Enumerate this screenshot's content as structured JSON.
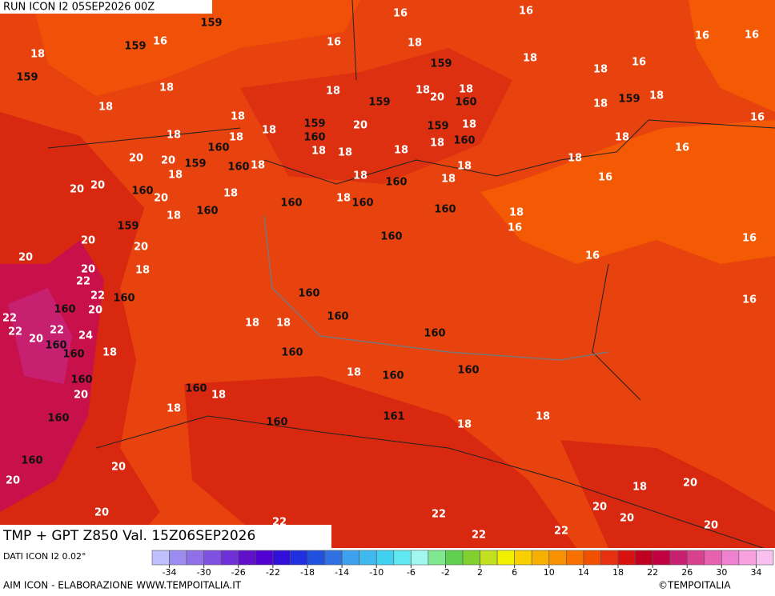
{
  "header": {
    "run": "RUN ICON I2 05SEP2026 00Z"
  },
  "footer": {
    "title": "TMP + GPT Z850 Val. 15Z06SEP2026",
    "source": "DATI ICON I2 0.02°",
    "credit": "AIM ICON - ELABORAZIONE WWW.TEMPOITALIA.IT",
    "copyright": "©TEMPOITALIA"
  },
  "colorbar": {
    "lim": [
      -36,
      36
    ],
    "ticks": [
      -34,
      -30,
      -26,
      -22,
      -18,
      -14,
      -10,
      -6,
      -2,
      2,
      6,
      10,
      14,
      18,
      22,
      26,
      30,
      34
    ],
    "colors": [
      "#c0c0ff",
      "#9c8cf0",
      "#9070e8",
      "#8050e0",
      "#7030d8",
      "#6010c8",
      "#5000d0",
      "#3010d8",
      "#2030e0",
      "#2050e0",
      "#3070e0",
      "#40a0f0",
      "#40b8f0",
      "#40d0f0",
      "#60e8f0",
      "#a0f8f0",
      "#80e890",
      "#60d050",
      "#80d030",
      "#c0e020",
      "#f0f000",
      "#f8d000",
      "#f8b000",
      "#f89000",
      "#f87000",
      "#f05000",
      "#e83010",
      "#d81010",
      "#c00020",
      "#c00040",
      "#c82070",
      "#d84090",
      "#e860b0",
      "#f080d0",
      "#f8a0e0",
      "#f8c0f0"
    ]
  },
  "map_labels": [
    "16",
    "16",
    "16",
    "16",
    "16",
    "16",
    "16",
    "16",
    "16",
    "16",
    "16",
    "16",
    "16",
    "16",
    "159",
    "159",
    "159",
    "159",
    "159",
    "159",
    "159",
    "159",
    "159",
    "159",
    "18",
    "18",
    "18",
    "18",
    "18",
    "18",
    "18",
    "18",
    "18",
    "18",
    "18",
    "18",
    "18",
    "18",
    "18",
    "18",
    "18",
    "18",
    "18",
    "18",
    "18",
    "18",
    "18",
    "18",
    "18",
    "18",
    "18",
    "18",
    "18",
    "18",
    "18",
    "18",
    "18",
    "18",
    "18",
    "18",
    "18",
    "18",
    "18",
    "18",
    "18",
    "20",
    "20",
    "20",
    "20",
    "20",
    "20",
    "20",
    "20",
    "20",
    "20",
    "20",
    "20",
    "20",
    "20",
    "20",
    "20",
    "20",
    "20",
    "20",
    "20",
    "20",
    "22",
    "22",
    "22",
    "22",
    "22",
    "22",
    "22",
    "22",
    "22",
    "24",
    "160",
    "160",
    "160",
    "160",
    "160",
    "160",
    "160",
    "160",
    "160",
    "160",
    "160",
    "160",
    "160",
    "160",
    "160",
    "160",
    "160",
    "160",
    "160",
    "160",
    "160",
    "160",
    "160",
    "160",
    "160",
    "160",
    "160",
    "161"
  ]
}
